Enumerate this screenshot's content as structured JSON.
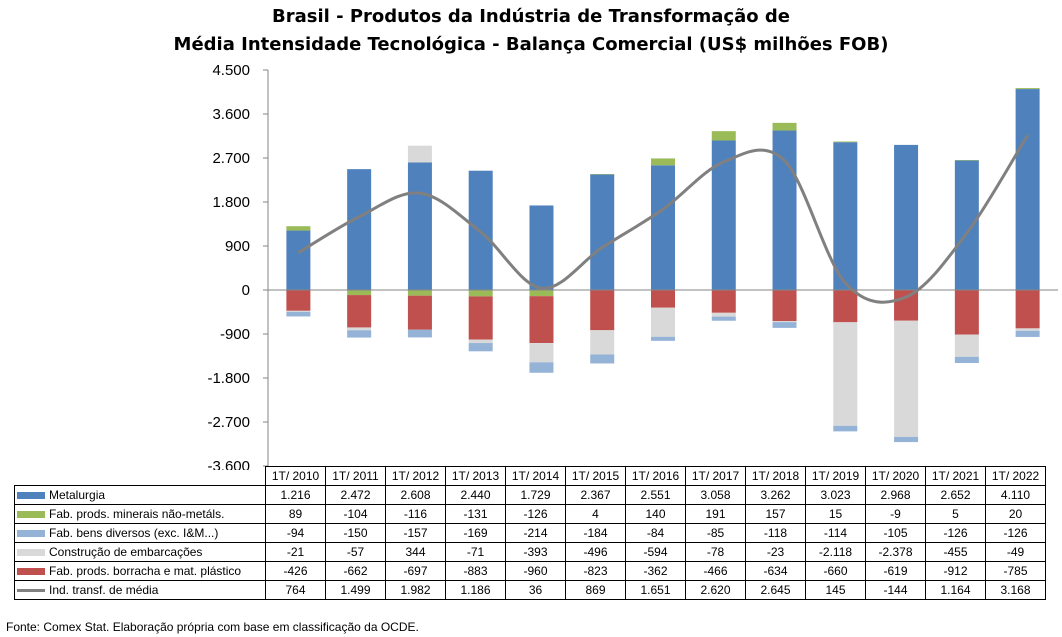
{
  "chart_data": {
    "type": "bar",
    "title_line1": "Brasil - Produtos da Indústria de Transformação de",
    "title_line2": "Média Intensidade Tecnológica - Balança Comercial (US$ milhões FOB)",
    "categories": [
      "1T/ 2010",
      "1T/ 2011",
      "1T/ 2012",
      "1T/ 2013",
      "1T/ 2014",
      "1T/ 2015",
      "1T/ 2016",
      "1T/ 2017",
      "1T/ 2018",
      "1T/ 2019",
      "1T/ 2020",
      "1T/ 2021",
      "1T/ 2022"
    ],
    "ylim": [
      -3600,
      4500
    ],
    "yticks": [
      4500,
      3600,
      2700,
      1800,
      900,
      0,
      -900,
      -1800,
      -2700,
      -3600
    ],
    "ytick_labels": [
      "4.500",
      "3.600",
      "2.700",
      "1.800",
      "900",
      "0",
      "-900",
      "-1.800",
      "-2.700",
      "-3.600"
    ],
    "series": [
      {
        "name": "Metalurgia",
        "type": "bar",
        "color": "#4F81BD",
        "values": [
          1216,
          2472,
          2608,
          2440,
          1729,
          2367,
          2551,
          3058,
          3262,
          3023,
          2968,
          2652,
          4110
        ],
        "labels": [
          "1.216",
          "2.472",
          "2.608",
          "2.440",
          "1.729",
          "2.367",
          "2.551",
          "3.058",
          "3.262",
          "3.023",
          "2.968",
          "2.652",
          "4.110"
        ]
      },
      {
        "name": "Fab. prods. minerais não-metáls.",
        "type": "bar",
        "color": "#9BBB59",
        "values": [
          89,
          -104,
          -116,
          -131,
          -126,
          4,
          140,
          191,
          157,
          15,
          -9,
          5,
          20
        ],
        "labels": [
          "89",
          "-104",
          "-116",
          "-131",
          "-126",
          "4",
          "140",
          "191",
          "157",
          "15",
          "-9",
          "5",
          "20"
        ]
      },
      {
        "name": "Fab. bens diversos (exc. I&M...)",
        "type": "bar",
        "color": "#95B3D7",
        "values": [
          -94,
          -150,
          -157,
          -169,
          -214,
          -184,
          -84,
          -85,
          -118,
          -114,
          -105,
          -126,
          -126
        ],
        "labels": [
          "-94",
          "-150",
          "-157",
          "-169",
          "-214",
          "-184",
          "-84",
          "-85",
          "-118",
          "-114",
          "-105",
          "-126",
          "-126"
        ]
      },
      {
        "name": "Construção de embarcações",
        "type": "bar",
        "color": "#D9D9D9",
        "values": [
          -21,
          -57,
          344,
          -71,
          -393,
          -496,
          -594,
          -78,
          -23,
          -2118,
          -2378,
          -455,
          -49
        ],
        "labels": [
          "-21",
          "-57",
          "344",
          "-71",
          "-393",
          "-496",
          "-594",
          "-78",
          "-23",
          "-2.118",
          "-2.378",
          "-455",
          "-49"
        ]
      },
      {
        "name": "Fab. prods. borracha e mat. plástico",
        "type": "bar",
        "color": "#C0504D",
        "values": [
          -426,
          -662,
          -697,
          -883,
          -960,
          -823,
          -362,
          -466,
          -634,
          -660,
          -619,
          -912,
          -785
        ],
        "labels": [
          "-426",
          "-662",
          "-697",
          "-883",
          "-960",
          "-823",
          "-362",
          "-466",
          "-634",
          "-660",
          "-619",
          "-912",
          "-785"
        ]
      },
      {
        "name": "Ind. transf. de média",
        "type": "line",
        "color": "#808080",
        "values": [
          764,
          1499,
          1982,
          1186,
          36,
          869,
          1651,
          2620,
          2645,
          145,
          -144,
          1164,
          3168
        ],
        "labels": [
          "764",
          "1.499",
          "1.982",
          "1.186",
          "36",
          "869",
          "1.651",
          "2.620",
          "2.645",
          "145",
          "-144",
          "1.164",
          "3.168"
        ]
      }
    ],
    "stack_order": [
      0,
      1,
      4,
      3,
      2
    ],
    "grid": false,
    "legend": "data-table"
  },
  "source": "Fonte:  Comex Stat. Elaboração própria com base em classificação da OCDE."
}
